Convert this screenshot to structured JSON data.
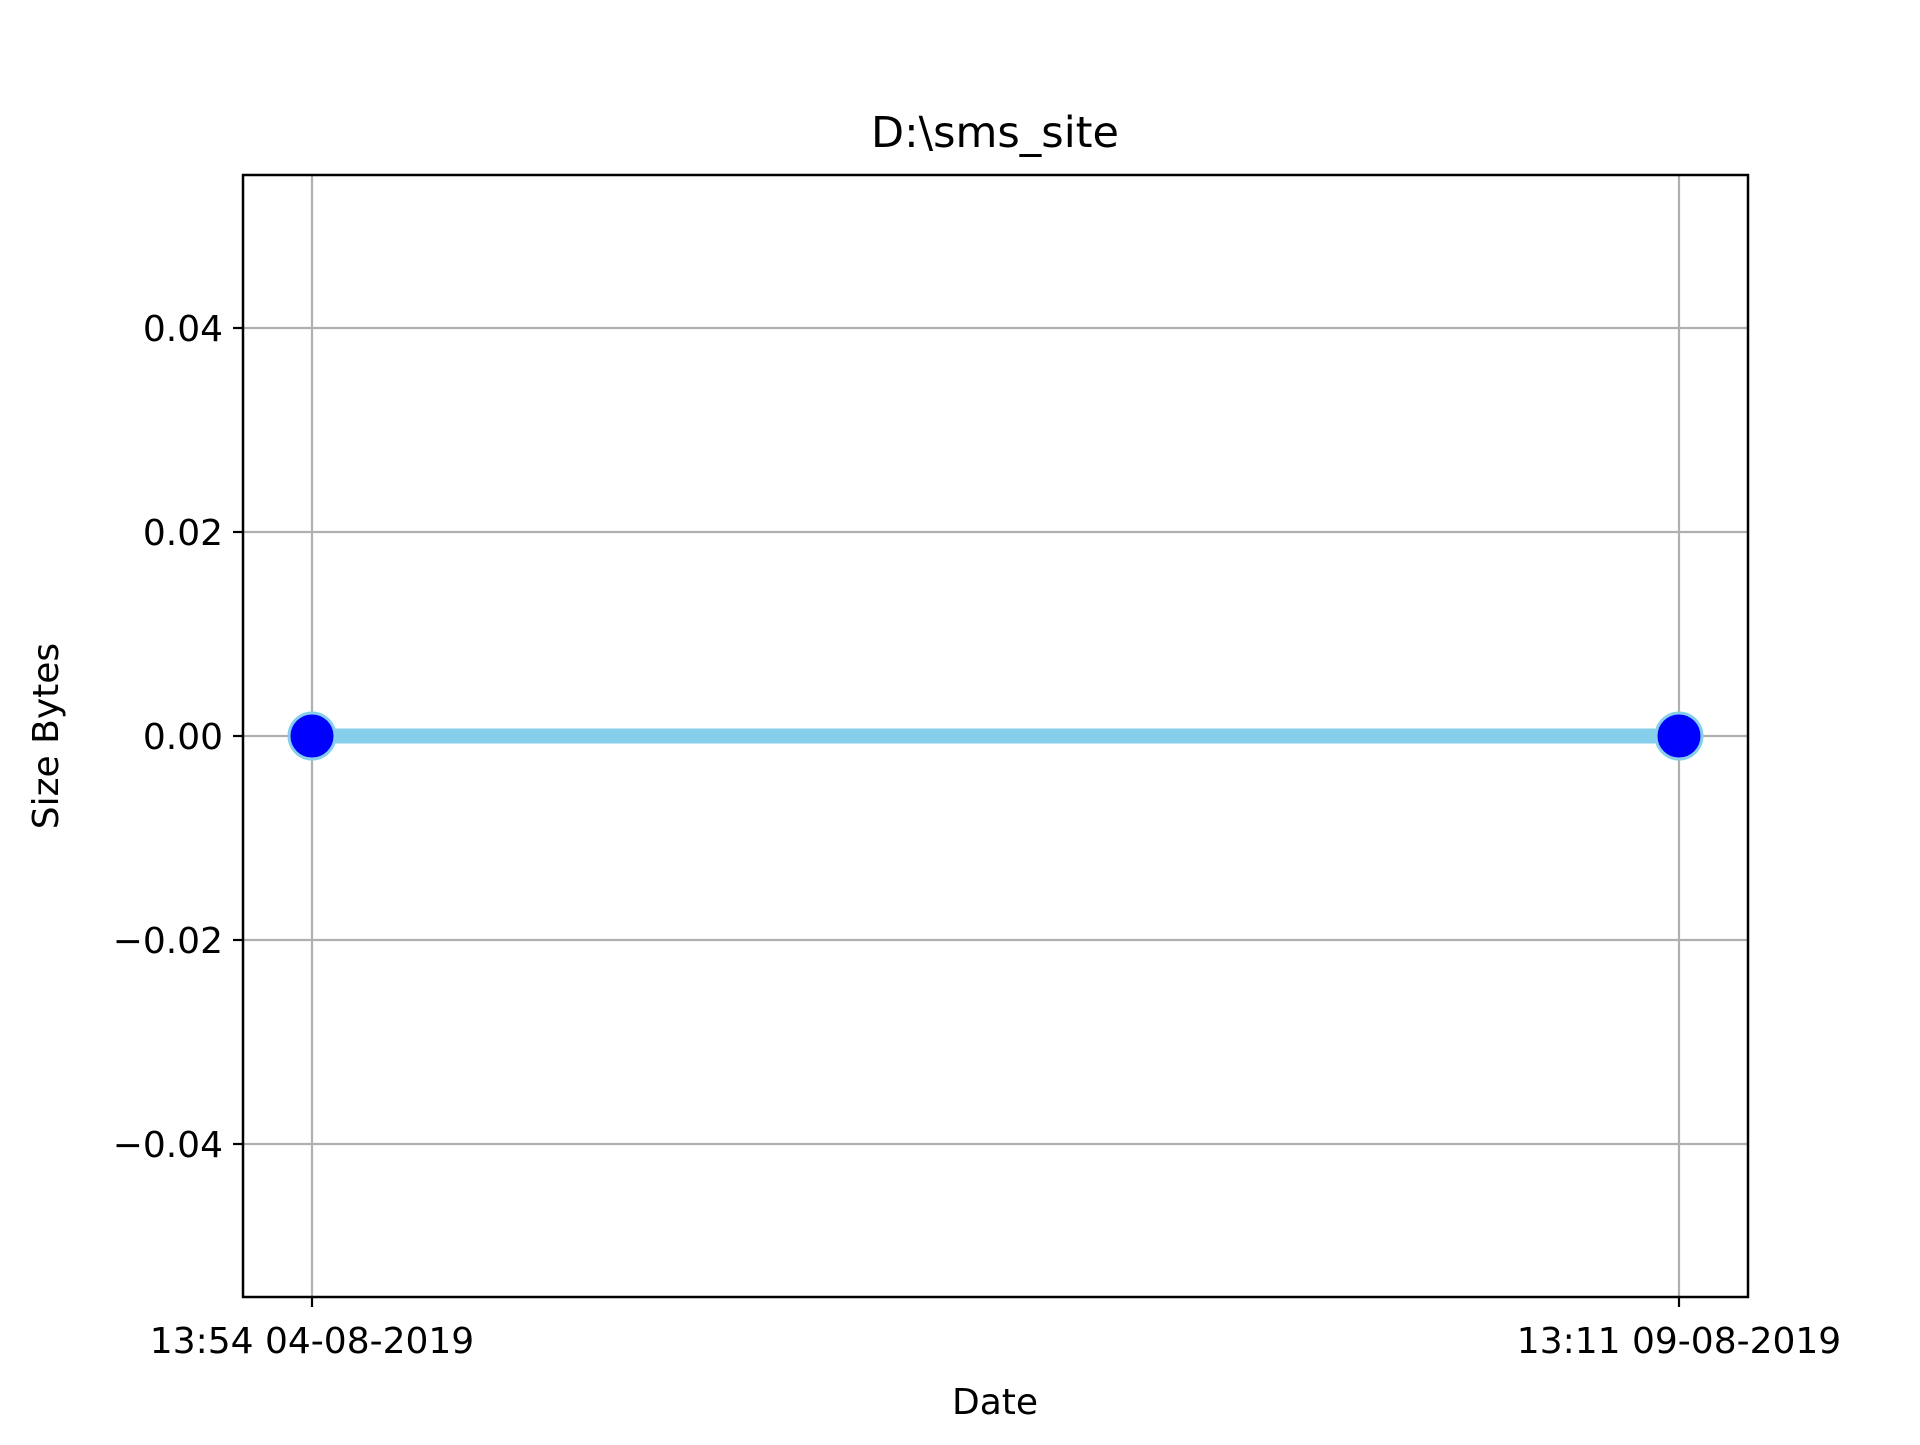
{
  "chart_data": {
    "type": "line",
    "title": "D:\\sms_site",
    "xlabel": "Date",
    "ylabel": "Size Bytes",
    "x": [
      "13:54 04-08-2019",
      "13:11 09-08-2019"
    ],
    "series": [
      {
        "values": [
          0,
          0
        ],
        "line_color": "#87ceeb",
        "marker_color": "#0000ff",
        "marker_edge_color": "#87ceeb"
      }
    ],
    "xticks": [
      "13:54 04-08-2019",
      "13:11 09-08-2019"
    ],
    "yticks": [
      {
        "value": -0.04,
        "label": "−0.04"
      },
      {
        "value": -0.02,
        "label": "−0.02"
      },
      {
        "value": 0.0,
        "label": "0.00"
      },
      {
        "value": 0.02,
        "label": "0.02"
      },
      {
        "value": 0.04,
        "label": "0.04"
      }
    ],
    "ylim": [
      -0.055,
      0.055
    ],
    "grid": true,
    "grid_color": "#b0b0b0",
    "axes_color": "#000000"
  }
}
